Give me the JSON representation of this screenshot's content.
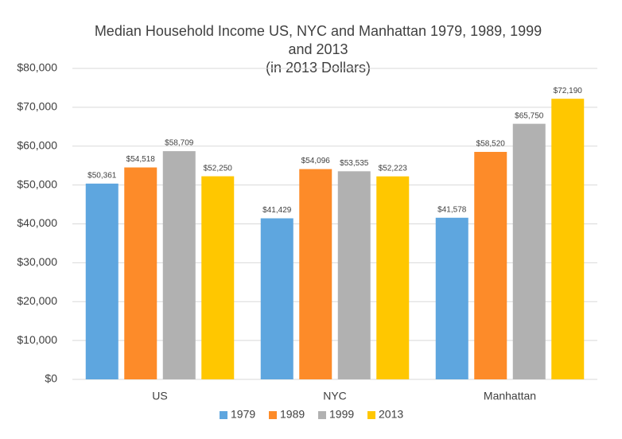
{
  "chart_data": {
    "type": "bar",
    "title": [
      "Median Household Income US, NYC and Manhattan 1979, 1989, 1999",
      "and 2013",
      "(in 2013 Dollars)"
    ],
    "categories": [
      "US",
      "NYC",
      "Manhattan"
    ],
    "series": [
      {
        "name": "1979",
        "color": "#5ea6df",
        "values": [
          50361,
          41429,
          41578
        ],
        "value_labels": [
          "$50,361",
          "$41,429",
          "$41,578"
        ]
      },
      {
        "name": "1989",
        "color": "#fd8b29",
        "values": [
          54518,
          54096,
          58520
        ],
        "value_labels": [
          "$54,518",
          "$54,096",
          "$58,520"
        ]
      },
      {
        "name": "1999",
        "color": "#b1b1b1",
        "values": [
          58709,
          53535,
          65750
        ],
        "value_labels": [
          "$58,709",
          "$53,535",
          "$65,750"
        ]
      },
      {
        "name": "2013",
        "color": "#ffc700",
        "values": [
          52250,
          52223,
          72190
        ],
        "value_labels": [
          "$52,250",
          "$52,223",
          "$72,190"
        ]
      }
    ],
    "ylim": [
      0,
      80000
    ],
    "yticks": [
      {
        "value": 0,
        "label": "$0"
      },
      {
        "value": 10000,
        "label": "$10,000"
      },
      {
        "value": 20000,
        "label": "$20,000"
      },
      {
        "value": 30000,
        "label": "$30,000"
      },
      {
        "value": 40000,
        "label": "$40,000"
      },
      {
        "value": 50000,
        "label": "$50,000"
      },
      {
        "value": 60000,
        "label": "$60,000"
      },
      {
        "value": 70000,
        "label": "$70,000"
      },
      {
        "value": 80000,
        "label": "$80,000"
      }
    ],
    "grid": true,
    "legend": "bottom"
  }
}
